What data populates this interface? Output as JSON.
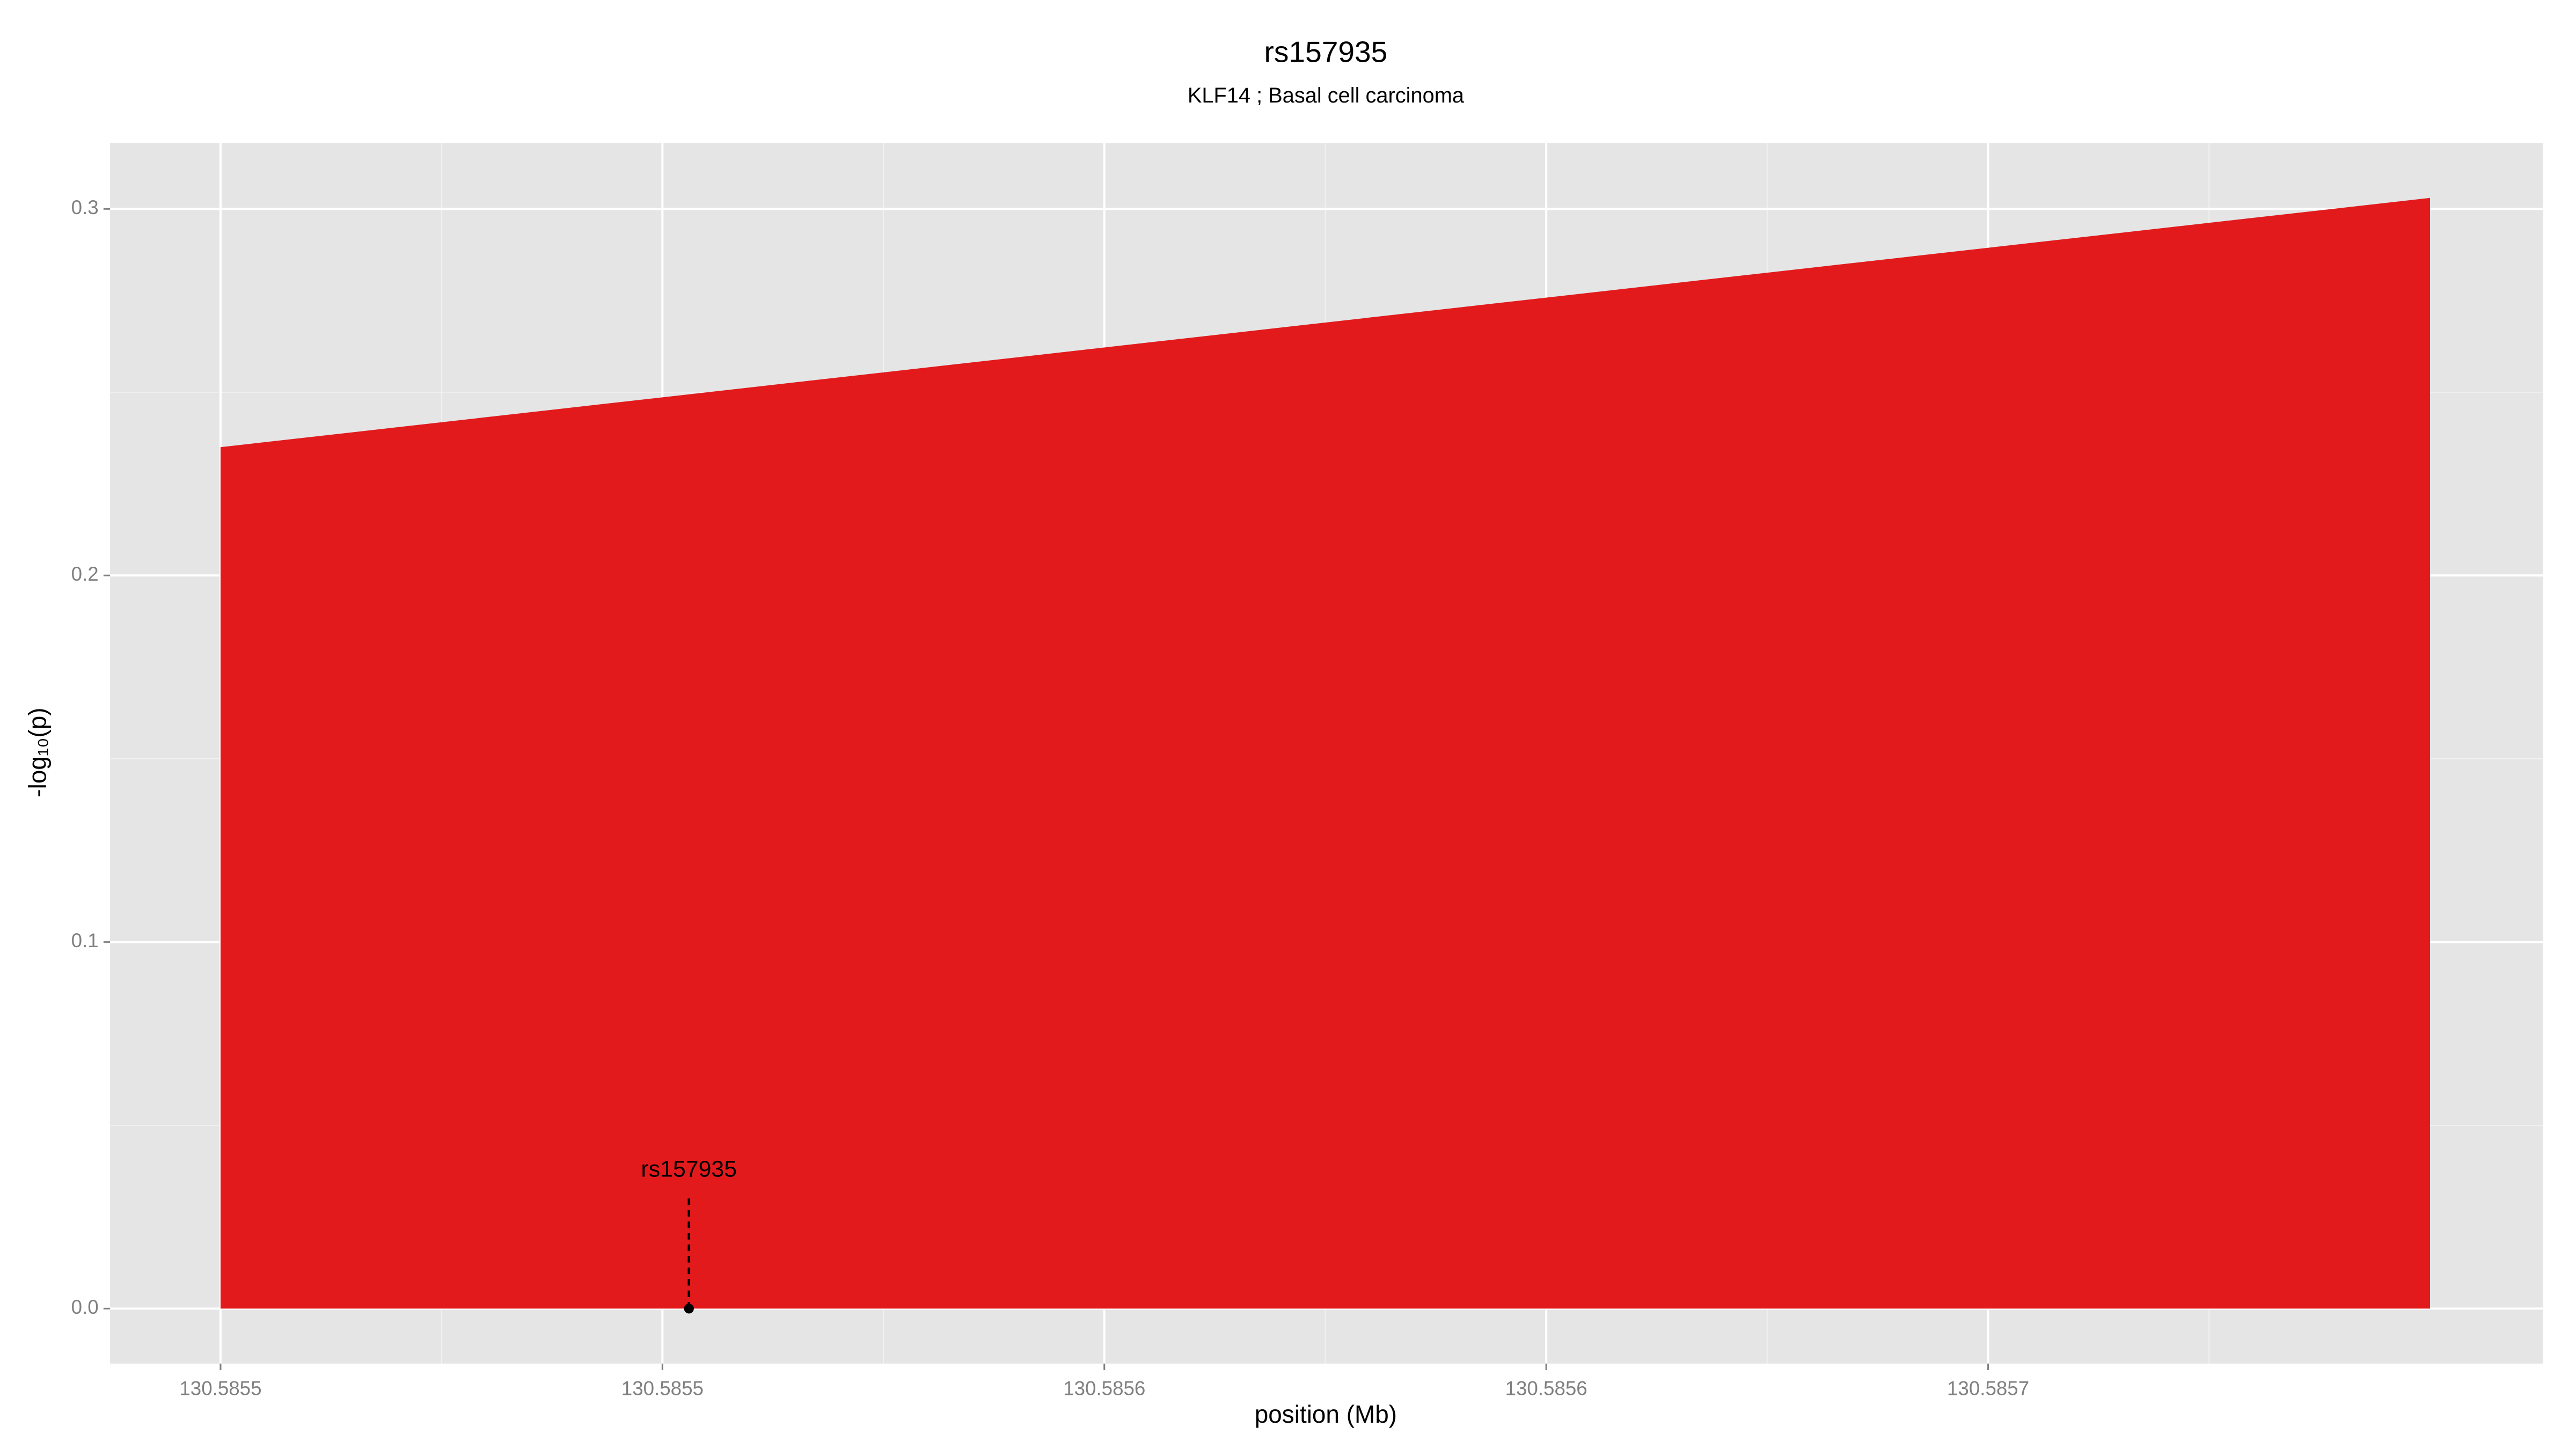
{
  "chart_data": {
    "type": "area",
    "title": "rs157935",
    "subtitle": "KLF14 ; Basal cell carcinoma",
    "x_label": "position (Mb)",
    "y_label": "-log₁₀(p)",
    "x": [
      130.5855,
      130.58575
    ],
    "series": [
      {
        "color": "#e31a1c",
        "values": [
          0.235,
          0.303
        ]
      }
    ],
    "xlim": [
      130.5854875,
      130.5857628
    ],
    "ylim": [
      -0.015,
      0.318
    ],
    "xticks": [
      {
        "value": 130.5855,
        "label": "130.5855"
      },
      {
        "value": 130.58555,
        "label": "130.5855"
      },
      {
        "value": 130.5856,
        "label": "130.5856"
      },
      {
        "value": 130.58565,
        "label": "130.5856"
      },
      {
        "value": 130.5857,
        "label": "130.5857"
      }
    ],
    "yticks": [
      {
        "value": 0,
        "label": "0.0"
      },
      {
        "value": 0.1,
        "label": "0.1"
      },
      {
        "value": 0.2,
        "label": "0.2"
      },
      {
        "value": 0.3,
        "label": "0.3"
      }
    ],
    "grid": true,
    "annotation": {
      "label": "rs157935",
      "x": 130.585553,
      "y": 0
    }
  }
}
